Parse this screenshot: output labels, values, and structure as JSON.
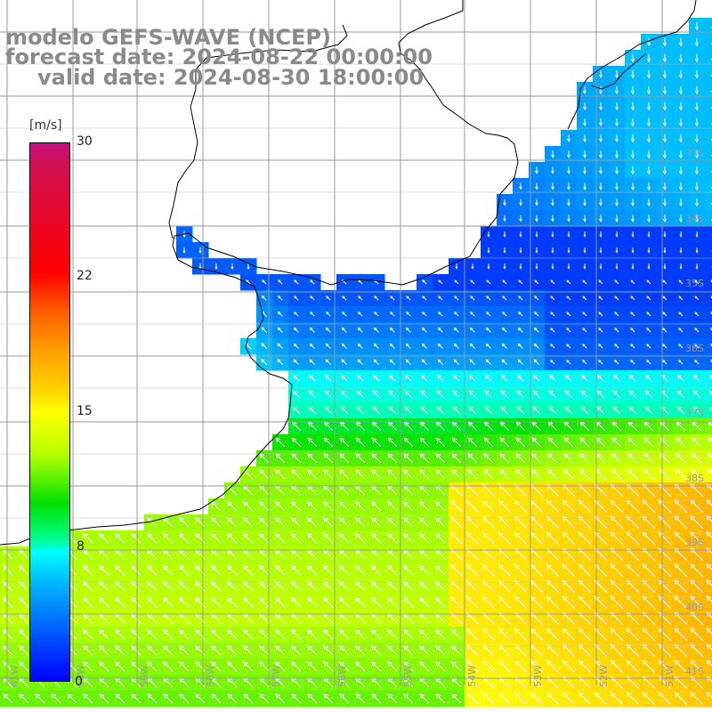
{
  "header": {
    "model": "modelo GEFS-WAVE (NCEP)",
    "forecast": "forecast date: 2024-08-22 00:00:00",
    "valid": "valid date: 2024-08-30 18:00:00"
  },
  "colorbar": {
    "unit": "[m/s]",
    "ticks": [
      "30",
      "22",
      "15",
      "8",
      "0"
    ],
    "colors": [
      "#c8107e",
      "#ff0000",
      "#ff9a00",
      "#ffff00",
      "#00e000",
      "#00ffff",
      "#0064ff",
      "#0000ff"
    ]
  },
  "lat_labels": [
    "33S",
    "34S",
    "35S",
    "36S",
    "37S",
    "38S",
    "39S",
    "40S",
    "41S"
  ],
  "lon_labels": [
    "61W",
    "60W",
    "59W",
    "58W",
    "57W",
    "56W",
    "55W",
    "54W",
    "53W",
    "52W",
    "51W"
  ],
  "colors": {
    "land": "#ffffff",
    "coast": "#000000",
    "grid": "#9a9a9a",
    "vector": "#ffffff"
  }
}
